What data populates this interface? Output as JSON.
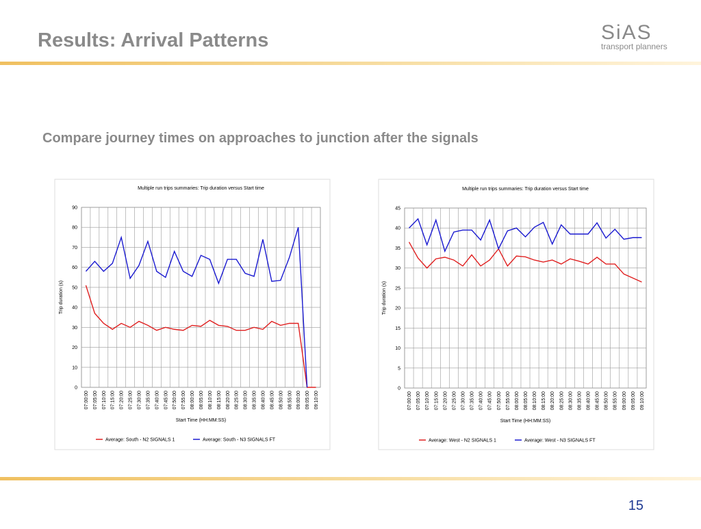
{
  "header": {
    "title": "Results: Arrival Patterns",
    "logo": "SiAS",
    "logo_tagline": "transport planners"
  },
  "subtitle": "Compare journey times on approaches  to junction after the signals",
  "page_number": "15",
  "chart_data": [
    {
      "type": "line",
      "title": "Multiple run trips summaries: Trip duration versus Start time",
      "x_label": "Start Time (HH:MM:SS)",
      "y_label": "Trip duration (s)",
      "categories": [
        "07:00:00",
        "07:05:00",
        "07:10:00",
        "07:15:00",
        "07:20:00",
        "07:25:00",
        "07:30:00",
        "07:35:00",
        "07:40:00",
        "07:45:00",
        "07:50:00",
        "07:55:00",
        "08:00:00",
        "08:05:00",
        "08:10:00",
        "08:15:00",
        "08:20:00",
        "08:25:00",
        "08:30:00",
        "08:35:00",
        "08:40:00",
        "08:45:00",
        "08:50:00",
        "08:55:00",
        "09:00:00",
        "09:05:00",
        "09:10:00"
      ],
      "series": [
        {
          "name": "Average: South - N2 SIGNALS 1",
          "color": "#e02020",
          "values": [
            51,
            37,
            32,
            29,
            32,
            30,
            33,
            31,
            28.5,
            30,
            29,
            28.5,
            31,
            30.5,
            33.5,
            31,
            30.5,
            28.5,
            28.5,
            30,
            29,
            33,
            31,
            32,
            32,
            0,
            0
          ]
        },
        {
          "name": "Average: South - N3 SIGNALS FT",
          "color": "#1a1ad0",
          "values": [
            58,
            63,
            58,
            62,
            75,
            54.5,
            61,
            73,
            58,
            55,
            68,
            58,
            55.5,
            66,
            64,
            52,
            64,
            64,
            57,
            55.5,
            74,
            53,
            53.5,
            65,
            80,
            0,
            null
          ]
        }
      ],
      "ylim": [
        0,
        90
      ],
      "yticks": [
        0,
        10,
        20,
        30,
        40,
        50,
        60,
        70,
        80,
        90
      ],
      "grid": true,
      "legend": "bottom"
    },
    {
      "type": "line",
      "title": "Multiple run trips summaries: Trip duration versus Start time",
      "x_label": "Start Time (HH:MM:SS)",
      "y_label": "Trip duration (s)",
      "categories": [
        "07:00:00",
        "07:05:00",
        "07:10:00",
        "07:15:00",
        "07:20:00",
        "07:25:00",
        "07:30:00",
        "07:35:00",
        "07:40:00",
        "07:45:00",
        "07:50:00",
        "07:55:00",
        "08:00:00",
        "08:05:00",
        "08:10:00",
        "08:15:00",
        "08:20:00",
        "08:25:00",
        "08:30:00",
        "08:35:00",
        "08:40:00",
        "08:45:00",
        "08:50:00",
        "08:55:00",
        "09:00:00",
        "09:05:00",
        "09:10:00"
      ],
      "series": [
        {
          "name": "Average: West - N2 SIGNALS 1",
          "color": "#e02020",
          "values": [
            36.5,
            32.5,
            30,
            32.3,
            32.7,
            32,
            30.5,
            33.3,
            30.5,
            32,
            34.8,
            30.5,
            33,
            32.8,
            32,
            31.5,
            32,
            31,
            32.3,
            31.7,
            31,
            32.7,
            31,
            31,
            28.5,
            27.5,
            26.5
          ]
        },
        {
          "name": "Average: West - N3 SIGNALS FT",
          "color": "#1a1ad0",
          "values": [
            40,
            42.3,
            35.8,
            42,
            34.2,
            39,
            39.5,
            39.5,
            37,
            42,
            34.8,
            39.3,
            40,
            37.8,
            40.2,
            41.4,
            36,
            40.8,
            38.5,
            38.5,
            38.5,
            41.3,
            37.5,
            39.7,
            37.2,
            37.6,
            37.6
          ]
        }
      ],
      "ylim": [
        0,
        45
      ],
      "yticks": [
        0,
        5,
        10,
        15,
        20,
        25,
        30,
        35,
        40,
        45
      ],
      "grid": true,
      "legend": "bottom"
    }
  ]
}
